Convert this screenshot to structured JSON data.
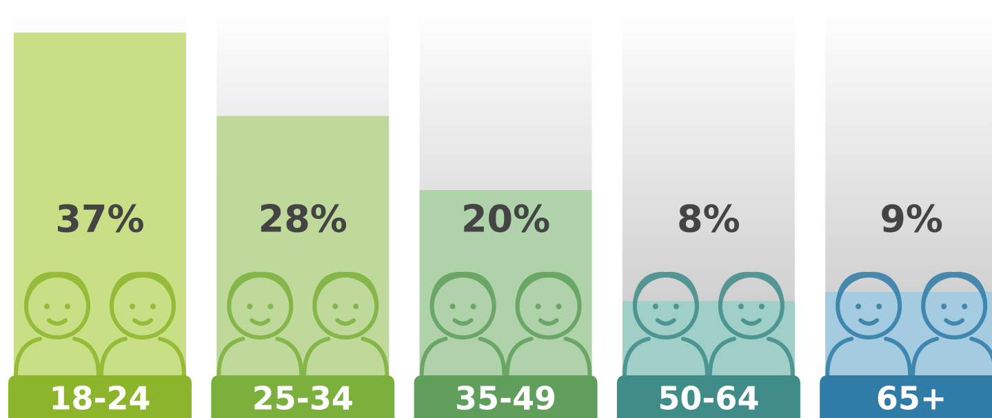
{
  "chart_data": {
    "type": "bar",
    "categories": [
      "18-24",
      "25-34",
      "35-49",
      "50-64",
      "65+"
    ],
    "values": [
      37,
      28,
      20,
      8,
      9
    ],
    "value_labels": [
      "37%",
      "28%",
      "20%",
      "8%",
      "9%"
    ],
    "colors": [
      "#c9df86",
      "#bfd99a",
      "#afd2aa",
      "#9fcfc6",
      "#a5cbe0"
    ],
    "label_colors": [
      "#8cb52b",
      "#7cb03d",
      "#5f9f5b",
      "#3f8c89",
      "#2f7ca7"
    ]
  }
}
